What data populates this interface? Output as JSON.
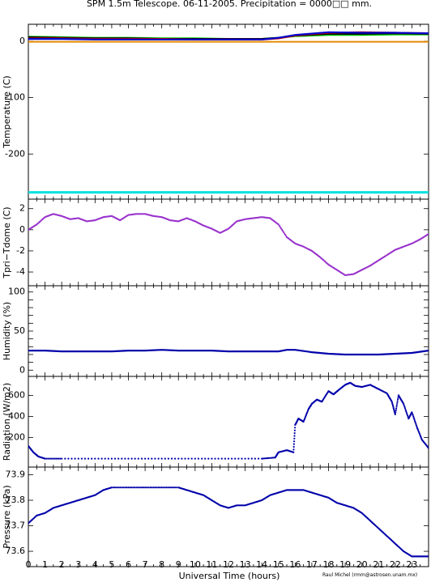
{
  "title": "SPM 1.5m Telescope. 06-11-2005. Precipitation = 0000□□ mm.",
  "credit": "Raul Michel (rmm@astrosen.unam.mx)",
  "chart_data": [
    {
      "type": "line",
      "ylabel": "Temperature (C)",
      "xlim": [
        0,
        24
      ],
      "ylim": [
        -280,
        30
      ],
      "yticks": [
        0,
        -100,
        -200
      ],
      "series": [
        {
          "color": "#00cc00",
          "x": [
            0,
            2,
            4,
            6,
            8,
            10,
            12,
            14,
            15,
            16,
            18,
            20,
            22,
            24
          ],
          "y": [
            8,
            7,
            6,
            6,
            5,
            5,
            4,
            4,
            6,
            9,
            11,
            11,
            12,
            12
          ]
        },
        {
          "color": "#000000",
          "x": [
            0,
            2,
            4,
            6,
            8,
            10,
            12,
            14,
            15,
            16,
            18,
            20,
            22,
            24
          ],
          "y": [
            7,
            6,
            5,
            5,
            4,
            4,
            4,
            4,
            6,
            10,
            13,
            13,
            14,
            13
          ]
        },
        {
          "color": "#cc0000",
          "x": [
            0,
            2,
            4,
            6,
            8,
            10,
            12,
            14,
            15,
            16,
            18,
            20,
            22,
            24
          ],
          "y": [
            5,
            5,
            4,
            4,
            4,
            3,
            3,
            3,
            5,
            10,
            15,
            16,
            15,
            14
          ]
        },
        {
          "color": "#0000cc",
          "x": [
            0,
            2,
            4,
            6,
            8,
            10,
            12,
            14,
            15,
            16,
            18,
            20,
            22,
            24
          ],
          "y": [
            4,
            4,
            3,
            3,
            3,
            3,
            3,
            3,
            6,
            11,
            16,
            15,
            15,
            14
          ]
        },
        {
          "color": "#e68a00",
          "x": [
            0,
            24
          ],
          "y": [
            -1,
            -1
          ]
        },
        {
          "color": "#00e0e0",
          "x": [
            0,
            24
          ],
          "y": [
            -268,
            -268
          ]
        }
      ]
    },
    {
      "type": "scatter",
      "ylabel": "Tpri−Tdome (C)",
      "xlim": [
        0,
        24
      ],
      "ylim": [
        -5.3,
        2.9
      ],
      "yticks": [
        2,
        0,
        -2,
        -4
      ],
      "color": "#9933cc",
      "x": [
        0,
        0.5,
        1,
        1.5,
        2,
        2.5,
        3,
        3.5,
        4,
        4.5,
        5,
        5.5,
        6,
        6.5,
        7,
        7.5,
        8,
        8.5,
        9,
        9.5,
        10,
        10.5,
        11,
        11.5,
        12,
        12.5,
        13,
        13.5,
        14,
        14.5,
        15,
        15.5,
        16,
        16.5,
        17,
        17.5,
        18,
        18.5,
        19,
        19.5,
        20,
        20.5,
        21,
        21.5,
        22,
        22.5,
        23,
        23.5,
        24
      ],
      "y": [
        0,
        0.5,
        1.2,
        1.5,
        1.3,
        1.0,
        1.1,
        0.8,
        0.9,
        1.2,
        1.3,
        0.9,
        1.4,
        1.5,
        1.5,
        1.3,
        1.2,
        0.9,
        0.8,
        1.1,
        0.8,
        0.4,
        0.1,
        -0.3,
        0.1,
        0.8,
        1.0,
        1.1,
        1.2,
        1.1,
        0.5,
        -0.7,
        -1.3,
        -1.6,
        -2.0,
        -2.6,
        -3.3,
        -3.8,
        -4.3,
        -4.2,
        -3.8,
        -3.4,
        -2.9,
        -2.4,
        -1.9,
        -1.6,
        -1.3,
        -0.9,
        -0.4
      ]
    },
    {
      "type": "line",
      "ylabel": "Humidity (%)",
      "xlim": [
        0,
        24
      ],
      "ylim": [
        -8,
        108
      ],
      "yticks": [
        0,
        10,
        20,
        30,
        40,
        50,
        60,
        70,
        80,
        90,
        100
      ],
      "yticklabels": [
        "0",
        "",
        "",
        "",
        "",
        "50",
        "",
        "",
        "",
        "",
        "100"
      ],
      "color": "#0000aa",
      "x": [
        0,
        1,
        2,
        3,
        4,
        5,
        6,
        7,
        8,
        9,
        10,
        11,
        12,
        13,
        14,
        15,
        15.5,
        16,
        17,
        18,
        19,
        20,
        21,
        22,
        23,
        24
      ],
      "y": [
        25,
        25,
        24,
        24,
        24,
        24,
        25,
        25,
        26,
        25,
        25,
        25,
        24,
        24,
        24,
        24,
        26,
        26,
        23,
        21,
        20,
        20,
        20,
        21,
        22,
        25
      ]
    },
    {
      "type": "scatter",
      "ylabel": "Radiation (W/m2)",
      "xlim": [
        0,
        24
      ],
      "ylim": [
        -80,
        780
      ],
      "yticks": [
        200,
        400,
        600
      ],
      "color": "#0000aa",
      "x": [
        0,
        0.3,
        0.6,
        1,
        2,
        4,
        6,
        8,
        10,
        12,
        14,
        14.8,
        15,
        15.5,
        15.9,
        16,
        16.2,
        16.5,
        16.8,
        17,
        17.3,
        17.6,
        18,
        18.3,
        18.6,
        19,
        19.3,
        19.6,
        20,
        20.5,
        21,
        21.5,
        21.8,
        22,
        22.2,
        22.5,
        22.8,
        23,
        23.3,
        23.6,
        24
      ],
      "y": [
        120,
        60,
        20,
        0,
        0,
        0,
        0,
        0,
        0,
        0,
        0,
        10,
        60,
        80,
        60,
        320,
        380,
        350,
        470,
        520,
        560,
        540,
        640,
        610,
        650,
        700,
        720,
        690,
        680,
        700,
        660,
        620,
        540,
        420,
        600,
        520,
        380,
        440,
        300,
        180,
        100
      ]
    },
    {
      "type": "scatter",
      "ylabel": "Pressure (kPa)",
      "xlim": [
        0,
        24
      ],
      "ylim": [
        73.54,
        73.93
      ],
      "yticks": [
        73.6,
        73.7,
        73.8,
        73.9
      ],
      "color": "#0000aa",
      "x": [
        0,
        0.5,
        1,
        1.5,
        2,
        2.5,
        3,
        3.5,
        4,
        4.5,
        5,
        6,
        7,
        8,
        9,
        9.5,
        10,
        10.5,
        11,
        11.5,
        12,
        12.5,
        13,
        13.5,
        14,
        14.5,
        15,
        15.5,
        16,
        16.5,
        17,
        17.5,
        18,
        18.5,
        19,
        19.5,
        20,
        20.5,
        21,
        21.5,
        22,
        22.5,
        23,
        23.5,
        24
      ],
      "y": [
        73.71,
        73.74,
        73.75,
        73.77,
        73.78,
        73.79,
        73.8,
        73.81,
        73.82,
        73.84,
        73.85,
        73.85,
        73.85,
        73.85,
        73.85,
        73.84,
        73.83,
        73.82,
        73.8,
        73.78,
        73.77,
        73.78,
        73.78,
        73.79,
        73.8,
        73.82,
        73.83,
        73.84,
        73.84,
        73.84,
        73.83,
        73.82,
        73.81,
        73.79,
        73.78,
        73.77,
        73.75,
        73.72,
        73.69,
        73.66,
        73.63,
        73.6,
        73.58,
        73.58,
        73.58
      ]
    }
  ],
  "xaxis": {
    "label": "Universal Time (hours)",
    "ticks": [
      0,
      1,
      2,
      3,
      4,
      5,
      6,
      7,
      8,
      9,
      10,
      11,
      12,
      13,
      14,
      15,
      16,
      17,
      18,
      19,
      20,
      21,
      22,
      23
    ]
  }
}
